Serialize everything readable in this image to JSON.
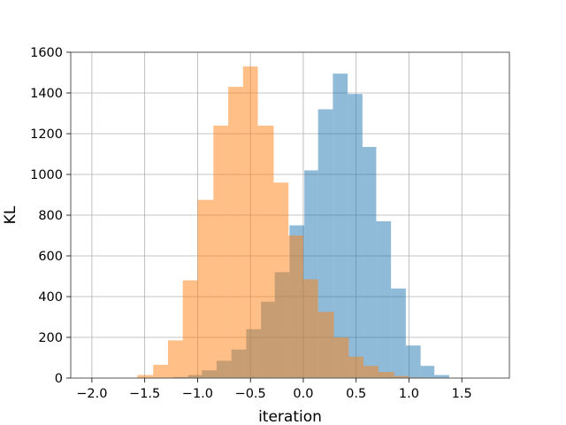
{
  "chart_data": {
    "type": "histogram",
    "title": "",
    "xlabel": "iteration",
    "ylabel": "KL",
    "xlim": [
      -2.2,
      1.95
    ],
    "ylim": [
      0,
      1600
    ],
    "xticks": [
      -2.0,
      -1.5,
      -1.0,
      -0.5,
      0.0,
      0.5,
      1.0,
      1.5
    ],
    "xtick_labels": [
      "−2.0",
      "−1.5",
      "−1.0",
      "−0.5",
      "0.0",
      "0.5",
      "1.0",
      "1.5"
    ],
    "yticks": [
      0,
      200,
      400,
      600,
      800,
      1000,
      1200,
      1400,
      1600
    ],
    "ytick_labels": [
      "0",
      "200",
      "400",
      "600",
      "800",
      "1000",
      "1200",
      "1400",
      "1600"
    ],
    "grid": true,
    "legend": "none",
    "series": [
      {
        "color": "#1f77b4",
        "alpha": 0.5,
        "bins": [
          {
            "x0": -1.23,
            "x1": -1.09,
            "count": 5
          },
          {
            "x0": -1.09,
            "x1": -0.96,
            "count": 15
          },
          {
            "x0": -0.96,
            "x1": -0.82,
            "count": 38
          },
          {
            "x0": -0.82,
            "x1": -0.68,
            "count": 85
          },
          {
            "x0": -0.68,
            "x1": -0.54,
            "count": 140
          },
          {
            "x0": -0.54,
            "x1": -0.4,
            "count": 240
          },
          {
            "x0": -0.4,
            "x1": -0.27,
            "count": 375
          },
          {
            "x0": -0.27,
            "x1": -0.13,
            "count": 520
          },
          {
            "x0": -0.13,
            "x1": 0.01,
            "count": 750
          },
          {
            "x0": 0.01,
            "x1": 0.14,
            "count": 1020
          },
          {
            "x0": 0.14,
            "x1": 0.28,
            "count": 1320
          },
          {
            "x0": 0.28,
            "x1": 0.42,
            "count": 1495
          },
          {
            "x0": 0.42,
            "x1": 0.56,
            "count": 1395
          },
          {
            "x0": 0.56,
            "x1": 0.69,
            "count": 1135
          },
          {
            "x0": 0.69,
            "x1": 0.83,
            "count": 770
          },
          {
            "x0": 0.83,
            "x1": 0.97,
            "count": 440
          },
          {
            "x0": 0.97,
            "x1": 1.11,
            "count": 160
          },
          {
            "x0": 1.11,
            "x1": 1.24,
            "count": 60
          },
          {
            "x0": 1.24,
            "x1": 1.38,
            "count": 15
          }
        ]
      },
      {
        "color": "#ff7f0e",
        "alpha": 0.5,
        "bins": [
          {
            "x0": -1.57,
            "x1": -1.42,
            "count": 15
          },
          {
            "x0": -1.42,
            "x1": -1.28,
            "count": 65
          },
          {
            "x0": -1.28,
            "x1": -1.14,
            "count": 185
          },
          {
            "x0": -1.14,
            "x1": -1.0,
            "count": 480
          },
          {
            "x0": -1.0,
            "x1": -0.85,
            "count": 875
          },
          {
            "x0": -0.85,
            "x1": -0.71,
            "count": 1240
          },
          {
            "x0": -0.71,
            "x1": -0.57,
            "count": 1430
          },
          {
            "x0": -0.57,
            "x1": -0.43,
            "count": 1530
          },
          {
            "x0": -0.43,
            "x1": -0.28,
            "count": 1240
          },
          {
            "x0": -0.28,
            "x1": -0.14,
            "count": 960
          },
          {
            "x0": -0.14,
            "x1": 0.0,
            "count": 700
          },
          {
            "x0": 0.0,
            "x1": 0.14,
            "count": 485
          },
          {
            "x0": 0.14,
            "x1": 0.29,
            "count": 325
          },
          {
            "x0": 0.29,
            "x1": 0.43,
            "count": 200
          },
          {
            "x0": 0.43,
            "x1": 0.57,
            "count": 105
          },
          {
            "x0": 0.57,
            "x1": 0.71,
            "count": 60
          },
          {
            "x0": 0.71,
            "x1": 0.86,
            "count": 30
          },
          {
            "x0": 0.86,
            "x1": 1.0,
            "count": 10
          },
          {
            "x0": 1.0,
            "x1": 1.14,
            "count": 3
          }
        ]
      }
    ]
  }
}
